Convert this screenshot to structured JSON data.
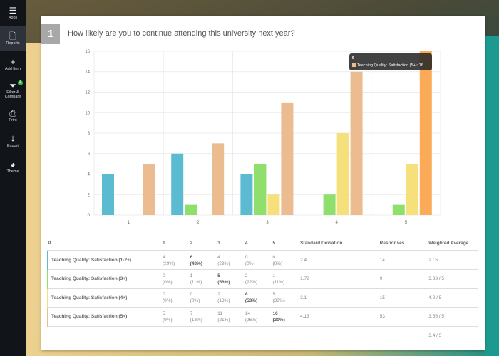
{
  "sidebar": {
    "items": [
      {
        "label": "Apps",
        "icon": "list-icon"
      },
      {
        "label": "Reports",
        "icon": "document-icon",
        "active": true
      },
      {
        "label": "Add Item",
        "icon": "plus-icon"
      },
      {
        "label": "Filter & Compare",
        "icon": "filter-icon",
        "badge": "4"
      },
      {
        "label": "Print",
        "icon": "printer-icon"
      },
      {
        "label": "Export",
        "icon": "export-icon"
      },
      {
        "label": "Theme",
        "icon": "palette-icon"
      }
    ]
  },
  "question": {
    "number": "1",
    "title": "How likely are you to continue attending this university next year?"
  },
  "chart_data": {
    "type": "bar",
    "categories": [
      "1",
      "2",
      "3",
      "4",
      "5"
    ],
    "ylim": [
      0,
      16
    ],
    "yticks": [
      0,
      2,
      4,
      6,
      8,
      10,
      12,
      14,
      16
    ],
    "grid": true,
    "series": [
      {
        "name": "Teaching Quality: Satisfaction (1-2+)",
        "color": "#5bbbd0",
        "values": [
          4,
          6,
          4,
          0,
          0
        ]
      },
      {
        "name": "Teaching Quality: Satisfaction (3+)",
        "color": "#8fdf6c",
        "values": [
          0,
          1,
          5,
          2,
          1
        ]
      },
      {
        "name": "Teaching Quality: Satisfaction (4+)",
        "color": "#f6e07c",
        "values": [
          0,
          0,
          2,
          8,
          5
        ]
      },
      {
        "name": "Teaching Quality: Satisfaction (5+)",
        "color": "#ebbc8f",
        "highlight": "#fbab58",
        "values": [
          5,
          7,
          11,
          14,
          16
        ]
      }
    ],
    "tooltip": {
      "title": "5",
      "text": "Teaching Quality: Satisfaction (5+): 16"
    }
  },
  "table": {
    "headers": [
      "1",
      "2",
      "3",
      "4",
      "5",
      "Standard Deviation",
      "Responses",
      "Weighted Average"
    ],
    "rows": [
      {
        "label": "Teaching Quality: Satisfaction (1-2+)",
        "color": "#5bbbd0",
        "cells": [
          [
            "4",
            "(29%)"
          ],
          [
            "6",
            "(43%)"
          ],
          [
            "4",
            "(29%)"
          ],
          [
            "0",
            "(0%)"
          ],
          [
            "0",
            "(0%)"
          ]
        ],
        "bold": 1,
        "sd": "2.4",
        "responses": "14",
        "wavg": "2 / 5"
      },
      {
        "label": "Teaching Quality: Satisfaction (3+)",
        "color": "#8fdf6c",
        "cells": [
          [
            "0",
            "(0%)"
          ],
          [
            "1",
            "(11%)"
          ],
          [
            "5",
            "(56%)"
          ],
          [
            "2",
            "(22%)"
          ],
          [
            "1",
            "(11%)"
          ]
        ],
        "bold": 2,
        "sd": "1.72",
        "responses": "9",
        "wavg": "3.33 / 5"
      },
      {
        "label": "Teaching Quality: Satisfaction (4+)",
        "color": "#f6e07c",
        "cells": [
          [
            "0",
            "(0%)"
          ],
          [
            "0",
            "(0%)"
          ],
          [
            "2",
            "(13%)"
          ],
          [
            "8",
            "(53%)"
          ],
          [
            "5",
            "(33%)"
          ]
        ],
        "bold": 3,
        "sd": "3.1",
        "responses": "15",
        "wavg": "4.2 / 5"
      },
      {
        "label": "Teaching Quality: Satisfaction (5+)",
        "color": "#ebbc8f",
        "cells": [
          [
            "5",
            "(9%)"
          ],
          [
            "7",
            "(13%)"
          ],
          [
            "11",
            "(21%)"
          ],
          [
            "14",
            "(26%)"
          ],
          [
            "16",
            "(30%)"
          ]
        ],
        "bold": 4,
        "sd": "4.13",
        "responses": "53",
        "wavg": "3.55 / 5"
      }
    ],
    "total_wavg": "3.4 / 5"
  }
}
